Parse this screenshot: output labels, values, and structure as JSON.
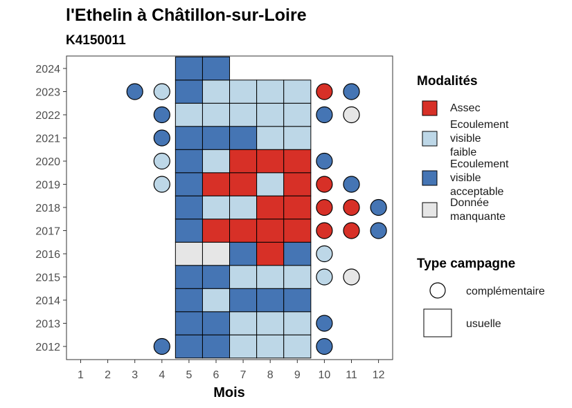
{
  "chart_data": {
    "type": "heatmap",
    "title": "l'Ethelin à Châtillon-sur-Loire",
    "subtitle": "K4150011",
    "xlabel": "Mois",
    "ylabel": "",
    "x_ticks": [
      "1",
      "2",
      "3",
      "4",
      "5",
      "6",
      "7",
      "8",
      "9",
      "10",
      "11",
      "12"
    ],
    "y_ticks": [
      "2012",
      "2013",
      "2014",
      "2015",
      "2016",
      "2017",
      "2018",
      "2019",
      "2020",
      "2021",
      "2022",
      "2023",
      "2024"
    ],
    "colors": {
      "assec": "#d73027",
      "faible": "#bdd7e7",
      "acceptable": "#4575b4",
      "manquante": "#e6e6e6"
    },
    "legend": {
      "modalites_title": "Modalités",
      "modalites": [
        {
          "key": "assec",
          "lines": [
            "Assec"
          ]
        },
        {
          "key": "faible",
          "lines": [
            "Ecoulement",
            "visible",
            "faible"
          ]
        },
        {
          "key": "acceptable",
          "lines": [
            "Ecoulement",
            "visible",
            "acceptable"
          ]
        },
        {
          "key": "manquante",
          "lines": [
            "Donnée",
            "manquante"
          ]
        }
      ],
      "campagne_title": "Type campagne",
      "campagnes": [
        {
          "shape": "circle",
          "label": "complémentaire"
        },
        {
          "shape": "square",
          "label": "usuelle"
        }
      ]
    },
    "usuelle": [
      {
        "year": 2012,
        "months": {
          "5": "acceptable",
          "6": "acceptable",
          "7": "faible",
          "8": "faible",
          "9": "faible"
        }
      },
      {
        "year": 2013,
        "months": {
          "5": "acceptable",
          "6": "acceptable",
          "7": "faible",
          "8": "faible",
          "9": "faible"
        }
      },
      {
        "year": 2014,
        "months": {
          "5": "acceptable",
          "6": "faible",
          "7": "acceptable",
          "8": "acceptable",
          "9": "acceptable"
        }
      },
      {
        "year": 2015,
        "months": {
          "5": "acceptable",
          "6": "acceptable",
          "7": "faible",
          "8": "faible",
          "9": "faible"
        }
      },
      {
        "year": 2016,
        "months": {
          "5": "manquante",
          "6": "manquante",
          "7": "acceptable",
          "8": "assec",
          "9": "acceptable"
        }
      },
      {
        "year": 2017,
        "months": {
          "5": "acceptable",
          "6": "assec",
          "7": "assec",
          "8": "assec",
          "9": "assec"
        }
      },
      {
        "year": 2018,
        "months": {
          "5": "acceptable",
          "6": "faible",
          "7": "faible",
          "8": "assec",
          "9": "assec"
        }
      },
      {
        "year": 2019,
        "months": {
          "5": "acceptable",
          "6": "assec",
          "7": "assec",
          "8": "faible",
          "9": "assec"
        }
      },
      {
        "year": 2020,
        "months": {
          "5": "acceptable",
          "6": "faible",
          "7": "assec",
          "8": "assec",
          "9": "assec"
        }
      },
      {
        "year": 2021,
        "months": {
          "5": "acceptable",
          "6": "acceptable",
          "7": "acceptable",
          "8": "faible",
          "9": "faible"
        }
      },
      {
        "year": 2022,
        "months": {
          "5": "faible",
          "6": "faible",
          "7": "faible",
          "8": "faible",
          "9": "faible"
        }
      },
      {
        "year": 2023,
        "months": {
          "5": "acceptable",
          "6": "faible",
          "7": "faible",
          "8": "faible",
          "9": "faible"
        }
      },
      {
        "year": 2024,
        "months": {
          "5": "acceptable",
          "6": "acceptable"
        }
      }
    ],
    "complementaire": [
      {
        "year": 2012,
        "month": 4,
        "status": "acceptable"
      },
      {
        "year": 2012,
        "month": 10,
        "status": "acceptable"
      },
      {
        "year": 2013,
        "month": 10,
        "status": "acceptable"
      },
      {
        "year": 2015,
        "month": 10,
        "status": "faible"
      },
      {
        "year": 2015,
        "month": 11,
        "status": "manquante"
      },
      {
        "year": 2016,
        "month": 10,
        "status": "faible"
      },
      {
        "year": 2017,
        "month": 10,
        "status": "assec"
      },
      {
        "year": 2017,
        "month": 11,
        "status": "assec"
      },
      {
        "year": 2017,
        "month": 12,
        "status": "acceptable"
      },
      {
        "year": 2018,
        "month": 10,
        "status": "assec"
      },
      {
        "year": 2018,
        "month": 11,
        "status": "assec"
      },
      {
        "year": 2018,
        "month": 12,
        "status": "acceptable"
      },
      {
        "year": 2019,
        "month": 4,
        "status": "faible"
      },
      {
        "year": 2019,
        "month": 10,
        "status": "assec"
      },
      {
        "year": 2019,
        "month": 11,
        "status": "acceptable"
      },
      {
        "year": 2020,
        "month": 4,
        "status": "faible"
      },
      {
        "year": 2020,
        "month": 10,
        "status": "acceptable"
      },
      {
        "year": 2021,
        "month": 4,
        "status": "acceptable"
      },
      {
        "year": 2022,
        "month": 4,
        "status": "acceptable"
      },
      {
        "year": 2022,
        "month": 10,
        "status": "acceptable"
      },
      {
        "year": 2022,
        "month": 11,
        "status": "manquante"
      },
      {
        "year": 2023,
        "month": 3,
        "status": "acceptable"
      },
      {
        "year": 2023,
        "month": 4,
        "status": "faible"
      },
      {
        "year": 2023,
        "month": 10,
        "status": "assec"
      },
      {
        "year": 2023,
        "month": 11,
        "status": "acceptable"
      }
    ]
  }
}
